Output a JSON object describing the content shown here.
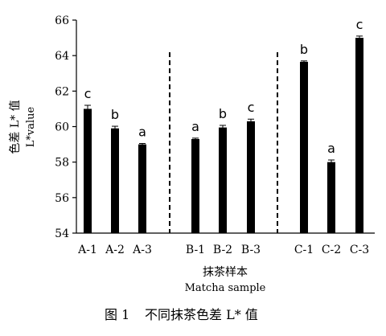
{
  "chart_data": {
    "type": "bar",
    "categories": [
      "A-1",
      "A-2",
      "A-3",
      "B-1",
      "B-2",
      "B-3",
      "C-1",
      "C-2",
      "C-3"
    ],
    "values": [
      61.0,
      59.9,
      59.0,
      59.3,
      59.95,
      60.3,
      63.65,
      58.0,
      65.0
    ],
    "errors": [
      0.2,
      0.12,
      0.05,
      0.05,
      0.12,
      0.12,
      0.05,
      0.12,
      0.1
    ],
    "significance": [
      "c",
      "b",
      "a",
      "a",
      "b",
      "c",
      "b",
      "a",
      "c"
    ],
    "groups": [
      [
        "A-1",
        "A-2",
        "A-3"
      ],
      [
        "B-1",
        "B-2",
        "B-3"
      ],
      [
        "C-1",
        "C-2",
        "C-3"
      ]
    ],
    "ylim": [
      54,
      66
    ],
    "yticks": [
      54,
      56,
      58,
      60,
      62,
      64,
      66
    ],
    "ylabel_cn": "色差 L* 值",
    "ylabel_en": "L*value",
    "xlabel_cn": "抹茶样本",
    "xlabel_en": "Matcha sample",
    "group_separators": "dashed",
    "bar_color": "#000000",
    "grid": false,
    "legend": "none"
  },
  "caption": {
    "number": "图 1",
    "title": "不同抹茶色差 L* 值"
  }
}
